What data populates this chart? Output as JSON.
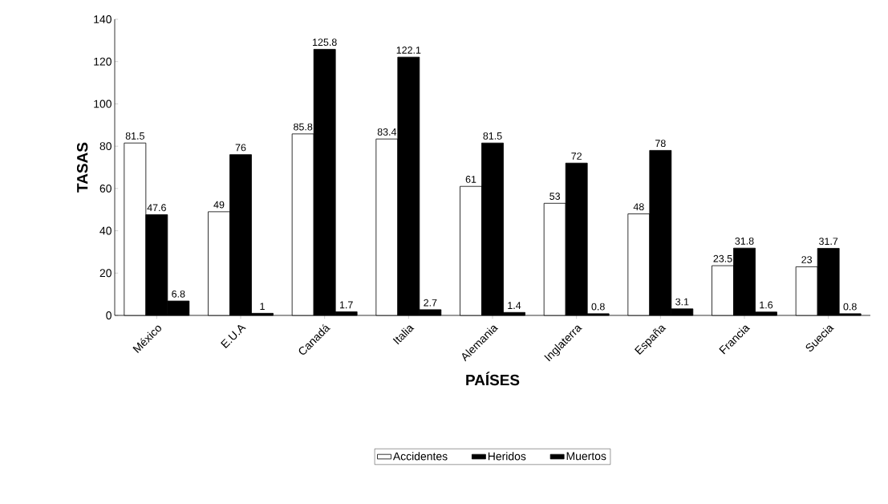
{
  "chart_data": {
    "type": "bar",
    "xlabel": "PAÍSES",
    "ylabel": "TASAS",
    "categories": [
      "México",
      "E.U.A",
      "Canadá",
      "Italia",
      "Alemania",
      "Inglaterra",
      "España",
      "Francia",
      "Suecia"
    ],
    "series": [
      {
        "name": "Accidentes",
        "color": "#ffffff",
        "values": [
          81.5,
          49,
          85.8,
          83.4,
          61,
          53,
          48,
          23.5,
          23
        ]
      },
      {
        "name": "Heridos",
        "color": "#000000",
        "values": [
          47.6,
          76,
          125.8,
          122.1,
          81.5,
          72,
          78,
          31.8,
          31.7
        ]
      },
      {
        "name": "Muertos",
        "color": "#000000",
        "values": [
          6.8,
          1,
          1.7,
          2.7,
          1.4,
          0.8,
          3.1,
          1.6,
          0.8
        ]
      }
    ],
    "ylim": [
      0,
      140
    ],
    "yticks": [
      0,
      20,
      40,
      60,
      80,
      100,
      120,
      140
    ],
    "grid": false,
    "legend": "bottom",
    "data_labels": true
  }
}
